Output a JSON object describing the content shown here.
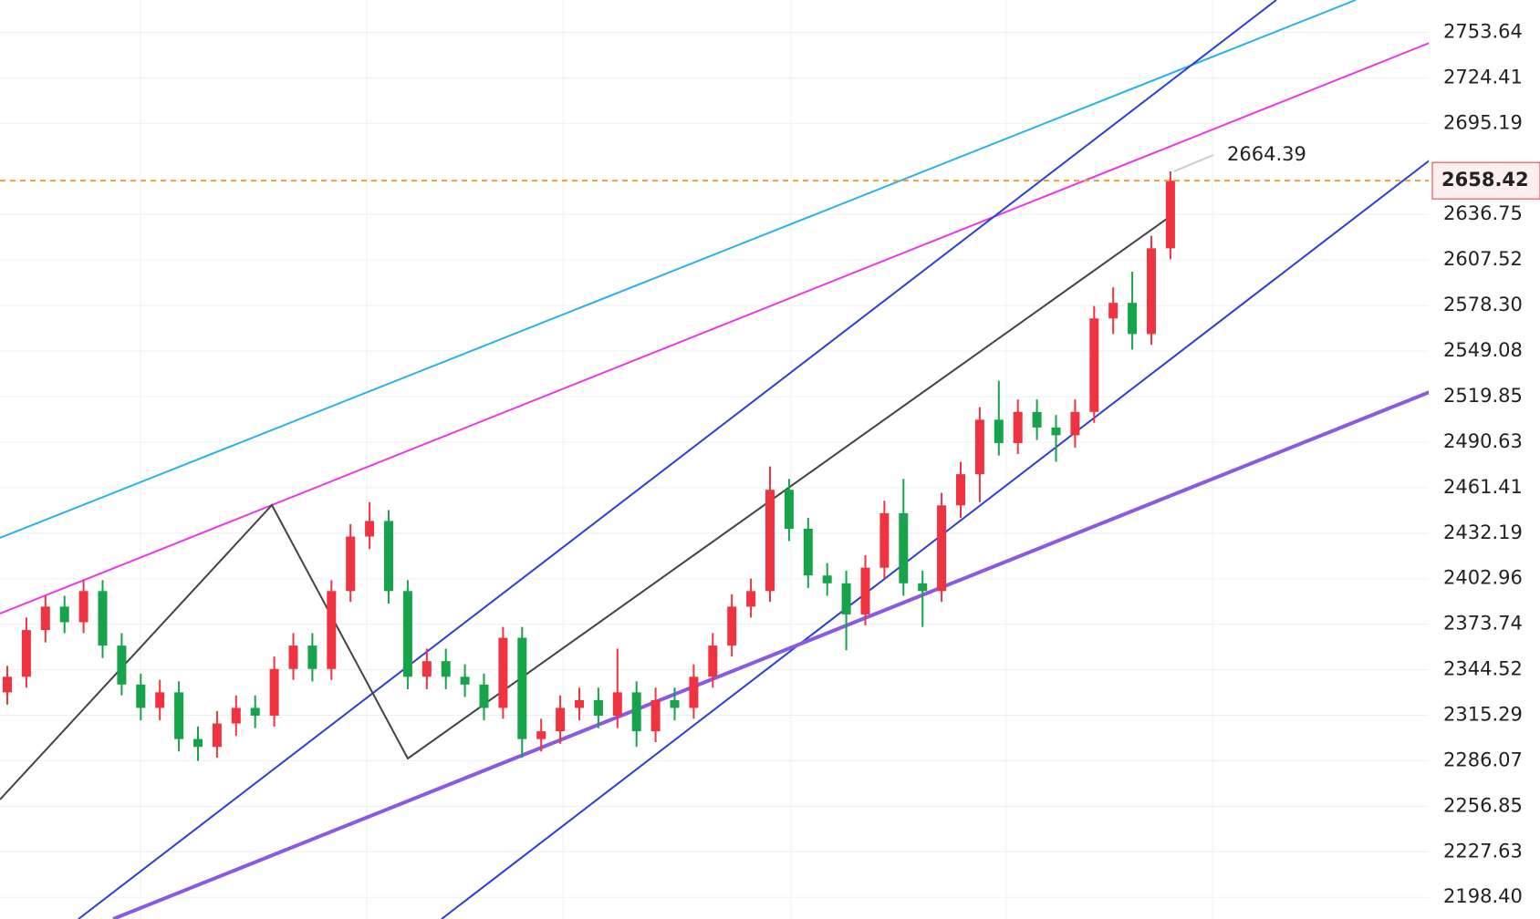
{
  "chart_data": {
    "type": "candlestick",
    "open": [
      2330,
      2340,
      2370,
      2385,
      2375,
      2395,
      2360,
      2335,
      2320,
      2330,
      2300,
      2295,
      2310,
      2320,
      2315,
      2345,
      2360,
      2345,
      2395,
      2430,
      2440,
      2395,
      2340,
      2350,
      2340,
      2335,
      2320,
      2365,
      2300,
      2305,
      2320,
      2325,
      2315,
      2330,
      2305,
      2325,
      2320,
      2340,
      2360,
      2385,
      2395,
      2460,
      2435,
      2405,
      2400,
      2380,
      2410,
      2445,
      2400,
      2395,
      2450,
      2470,
      2505,
      2490,
      2510,
      2500,
      2495,
      2510,
      2570,
      2580,
      2560,
      2615
    ],
    "high": [
      2347,
      2378,
      2392,
      2392,
      2402,
      2402,
      2368,
      2342,
      2338,
      2337,
      2308,
      2318,
      2328,
      2328,
      2353,
      2368,
      2368,
      2402,
      2438,
      2452,
      2447,
      2402,
      2358,
      2358,
      2348,
      2342,
      2372,
      2372,
      2313,
      2328,
      2333,
      2333,
      2358,
      2337,
      2333,
      2333,
      2348,
      2368,
      2393,
      2403,
      2475,
      2467,
      2442,
      2413,
      2408,
      2418,
      2453,
      2467,
      2408,
      2458,
      2478,
      2513,
      2530,
      2518,
      2518,
      2508,
      2518,
      2578,
      2590,
      2600,
      2623,
      2664.39
    ],
    "low": [
      2322,
      2333,
      2362,
      2368,
      2368,
      2352,
      2328,
      2312,
      2312,
      2292,
      2286,
      2288,
      2302,
      2307,
      2308,
      2338,
      2337,
      2338,
      2388,
      2422,
      2387,
      2332,
      2332,
      2332,
      2327,
      2312,
      2313,
      2288,
      2292,
      2297,
      2312,
      2307,
      2307,
      2295,
      2298,
      2312,
      2313,
      2333,
      2353,
      2378,
      2388,
      2427,
      2397,
      2392,
      2357,
      2373,
      2403,
      2392,
      2372,
      2388,
      2442,
      2452,
      2482,
      2483,
      2492,
      2478,
      2487,
      2503,
      2560,
      2550,
      2553,
      2608
    ],
    "close": [
      2340,
      2370,
      2385,
      2375,
      2395,
      2360,
      2335,
      2320,
      2330,
      2300,
      2295,
      2310,
      2320,
      2315,
      2345,
      2360,
      2345,
      2395,
      2430,
      2440,
      2395,
      2340,
      2350,
      2340,
      2335,
      2320,
      2365,
      2300,
      2305,
      2320,
      2325,
      2315,
      2330,
      2305,
      2325,
      2320,
      2340,
      2360,
      2385,
      2395,
      2460,
      2435,
      2405,
      2400,
      2380,
      2410,
      2445,
      2400,
      2395,
      2450,
      2470,
      2505,
      2490,
      2510,
      2500,
      2495,
      2510,
      2570,
      2580,
      2560,
      2615,
      2658.42
    ],
    "up_color": "#ef3340",
    "down_color": "#16a34a",
    "price_line_color": "#f0a030",
    "ylim": [
      2184.5,
      2774.4
    ],
    "yticks": [
      {
        "value": 2753.64,
        "label": "2753.64"
      },
      {
        "value": 2724.41,
        "label": "2724.41"
      },
      {
        "value": 2695.19,
        "label": "2695.19"
      },
      {
        "value": 2636.75,
        "label": "2636.75"
      },
      {
        "value": 2607.52,
        "label": "2607.52"
      },
      {
        "value": 2578.3,
        "label": "2578.30"
      },
      {
        "value": 2549.08,
        "label": "2549.08"
      },
      {
        "value": 2519.85,
        "label": "2519.85"
      },
      {
        "value": 2490.63,
        "label": "2490.63"
      },
      {
        "value": 2461.41,
        "label": "2461.41"
      },
      {
        "value": 2432.19,
        "label": "2432.19"
      },
      {
        "value": 2402.96,
        "label": "2402.96"
      },
      {
        "value": 2373.74,
        "label": "2373.74"
      },
      {
        "value": 2344.52,
        "label": "2344.52"
      },
      {
        "value": 2315.29,
        "label": "2315.29"
      },
      {
        "value": 2286.07,
        "label": "2286.07"
      },
      {
        "value": 2256.85,
        "label": "2256.85"
      },
      {
        "value": 2227.63,
        "label": "2227.63"
      },
      {
        "value": 2198.4,
        "label": "2198.40"
      }
    ],
    "grid": true
  }
}
